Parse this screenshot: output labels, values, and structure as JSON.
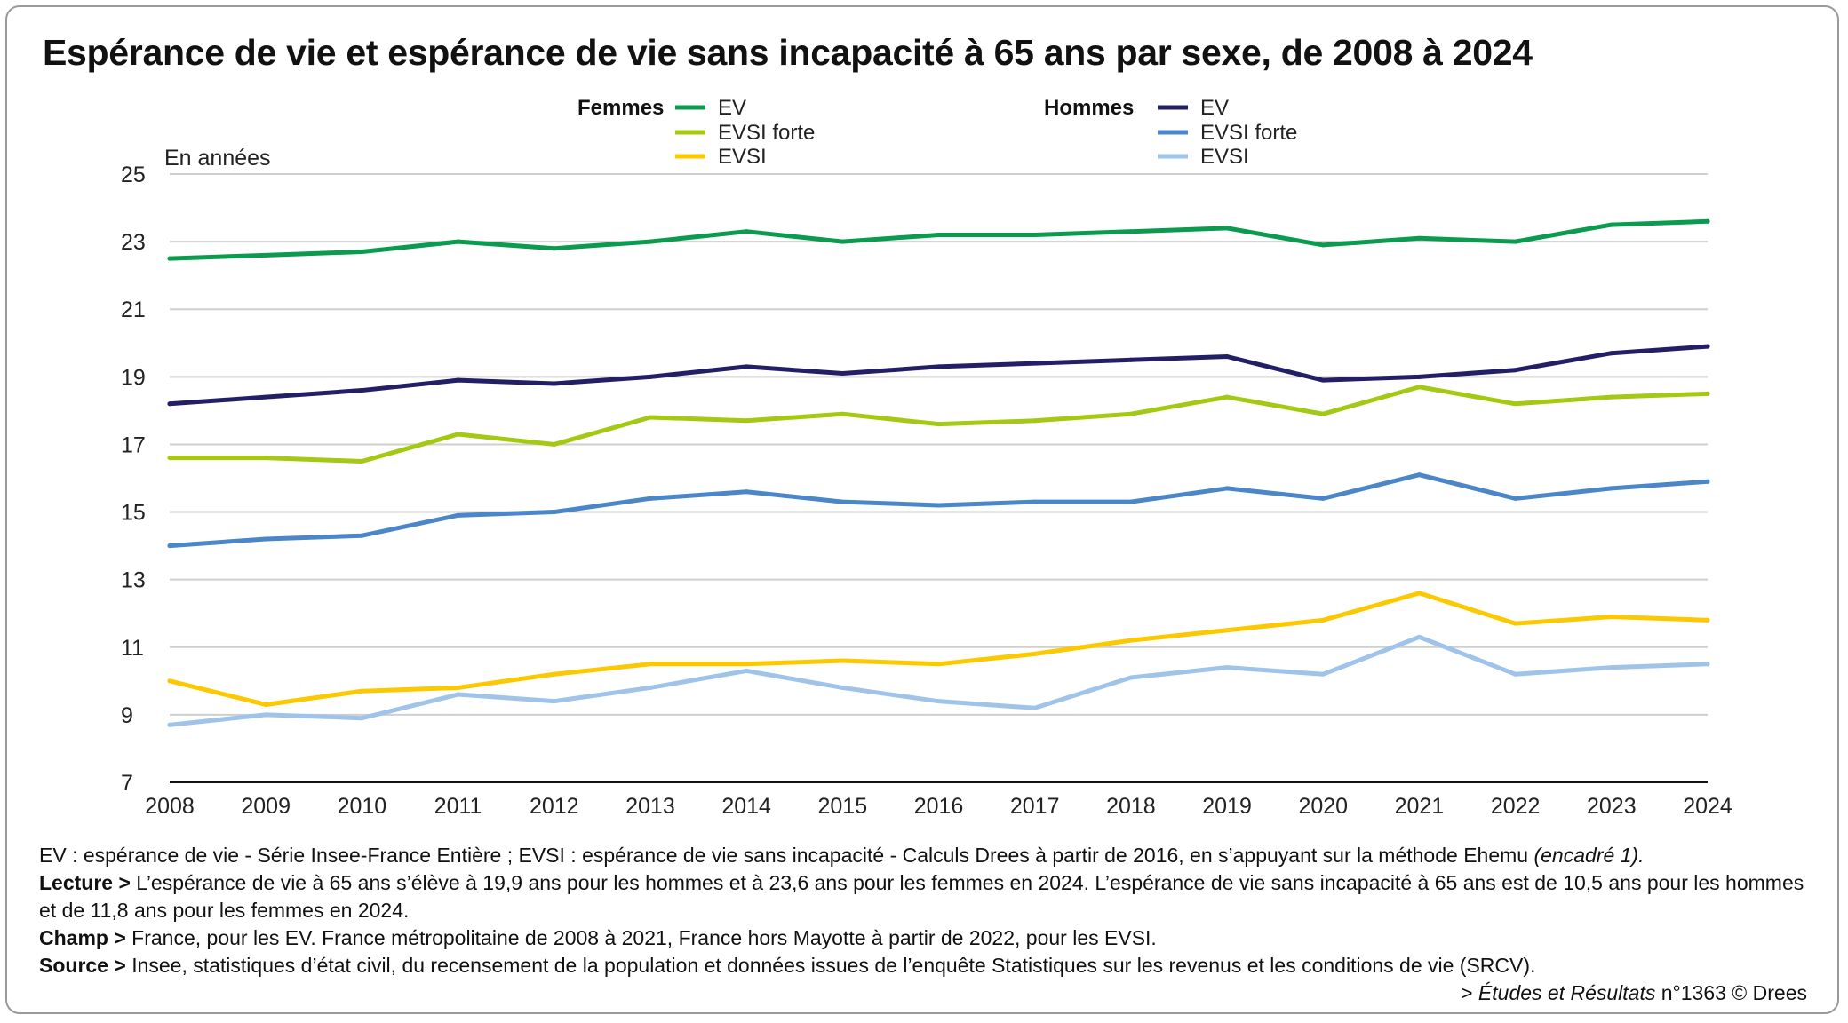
{
  "title": "Espérance de vie et espérance de vie sans incapacité à 65 ans par sexe, de 2008 à 2024",
  "chart_data": {
    "type": "line",
    "title": "Espérance de vie et espérance de vie sans incapacité à 65 ans par sexe, de 2008 à 2024",
    "ylabel": "En années",
    "xlabel": "",
    "ylim": [
      7,
      25
    ],
    "yticks": [
      7,
      9,
      11,
      13,
      15,
      17,
      19,
      21,
      23,
      25
    ],
    "grid": true,
    "legend_position": "top",
    "legend_groups": [
      "Femmes",
      "Hommes"
    ],
    "x": [
      2008,
      2009,
      2010,
      2011,
      2012,
      2013,
      2014,
      2015,
      2016,
      2017,
      2018,
      2019,
      2020,
      2021,
      2022,
      2023,
      2024
    ],
    "series": [
      {
        "group": "Femmes",
        "name": "EV",
        "color": "#0a9b4f",
        "values": [
          22.5,
          22.6,
          22.7,
          23.0,
          22.8,
          23.0,
          23.3,
          23.0,
          23.2,
          23.2,
          23.3,
          23.4,
          22.9,
          23.1,
          23.0,
          23.5,
          23.6
        ]
      },
      {
        "group": "Femmes",
        "name": "EVSI forte",
        "color": "#a3c913",
        "values": [
          16.6,
          16.6,
          16.5,
          17.3,
          17.0,
          17.8,
          17.7,
          17.9,
          17.6,
          17.7,
          17.9,
          18.4,
          17.9,
          18.7,
          18.2,
          18.4,
          18.5
        ]
      },
      {
        "group": "Femmes",
        "name": "EVSI",
        "color": "#fcc800",
        "values": [
          10.0,
          9.3,
          9.7,
          9.8,
          10.2,
          10.5,
          10.5,
          10.6,
          10.5,
          10.8,
          11.2,
          11.5,
          11.8,
          12.6,
          11.7,
          11.9,
          11.8
        ]
      },
      {
        "group": "Hommes",
        "name": "EV",
        "color": "#221f66",
        "values": [
          18.2,
          18.4,
          18.6,
          18.9,
          18.8,
          19.0,
          19.3,
          19.1,
          19.3,
          19.4,
          19.5,
          19.6,
          18.9,
          19.0,
          19.2,
          19.7,
          19.9
        ]
      },
      {
        "group": "Hommes",
        "name": "EVSI forte",
        "color": "#4a86c8",
        "values": [
          14.0,
          14.2,
          14.3,
          14.9,
          15.0,
          15.4,
          15.6,
          15.3,
          15.2,
          15.3,
          15.3,
          15.7,
          15.4,
          16.1,
          15.4,
          15.7,
          15.9
        ]
      },
      {
        "group": "Hommes",
        "name": "EVSI",
        "color": "#9fc3e9",
        "values": [
          8.7,
          9.0,
          8.9,
          9.6,
          9.4,
          9.8,
          10.3,
          9.8,
          9.4,
          9.2,
          10.1,
          10.4,
          10.2,
          11.3,
          10.2,
          10.4,
          10.5
        ]
      }
    ]
  },
  "footer": {
    "note": "EV : espérance de vie - Série Insee-France Entière ; EVSI : espérance de vie sans incapacité - Calculs Drees à partir de 2016, en s’appuyant sur la méthode Ehemu",
    "note_italic": "(encadré 1).",
    "lecture_label": "Lecture >",
    "lecture": "L’espérance de vie à 65 ans s’élève à 19,9 ans pour les hommes et à 23,6 ans pour les femmes en 2024. L’espérance de vie sans incapacité à 65 ans est de 10,5 ans pour les hommes et de 11,8 ans pour les femmes en 2024.",
    "champ_label": "Champ >",
    "champ": "France, pour les EV. France métropolitaine de 2008 à 2021, France hors Mayotte à partir de 2022, pour les EVSI.",
    "source_label": "Source >",
    "source": "Insee, statistiques d’état civil, du recensement de la population et données issues de l’enquête Statistiques sur les revenus et les conditions de vie (SRCV).",
    "credit_prefix": "> ",
    "credit_italic": "Études et Résultats",
    "credit_suffix": " n°1363 © Drees"
  }
}
